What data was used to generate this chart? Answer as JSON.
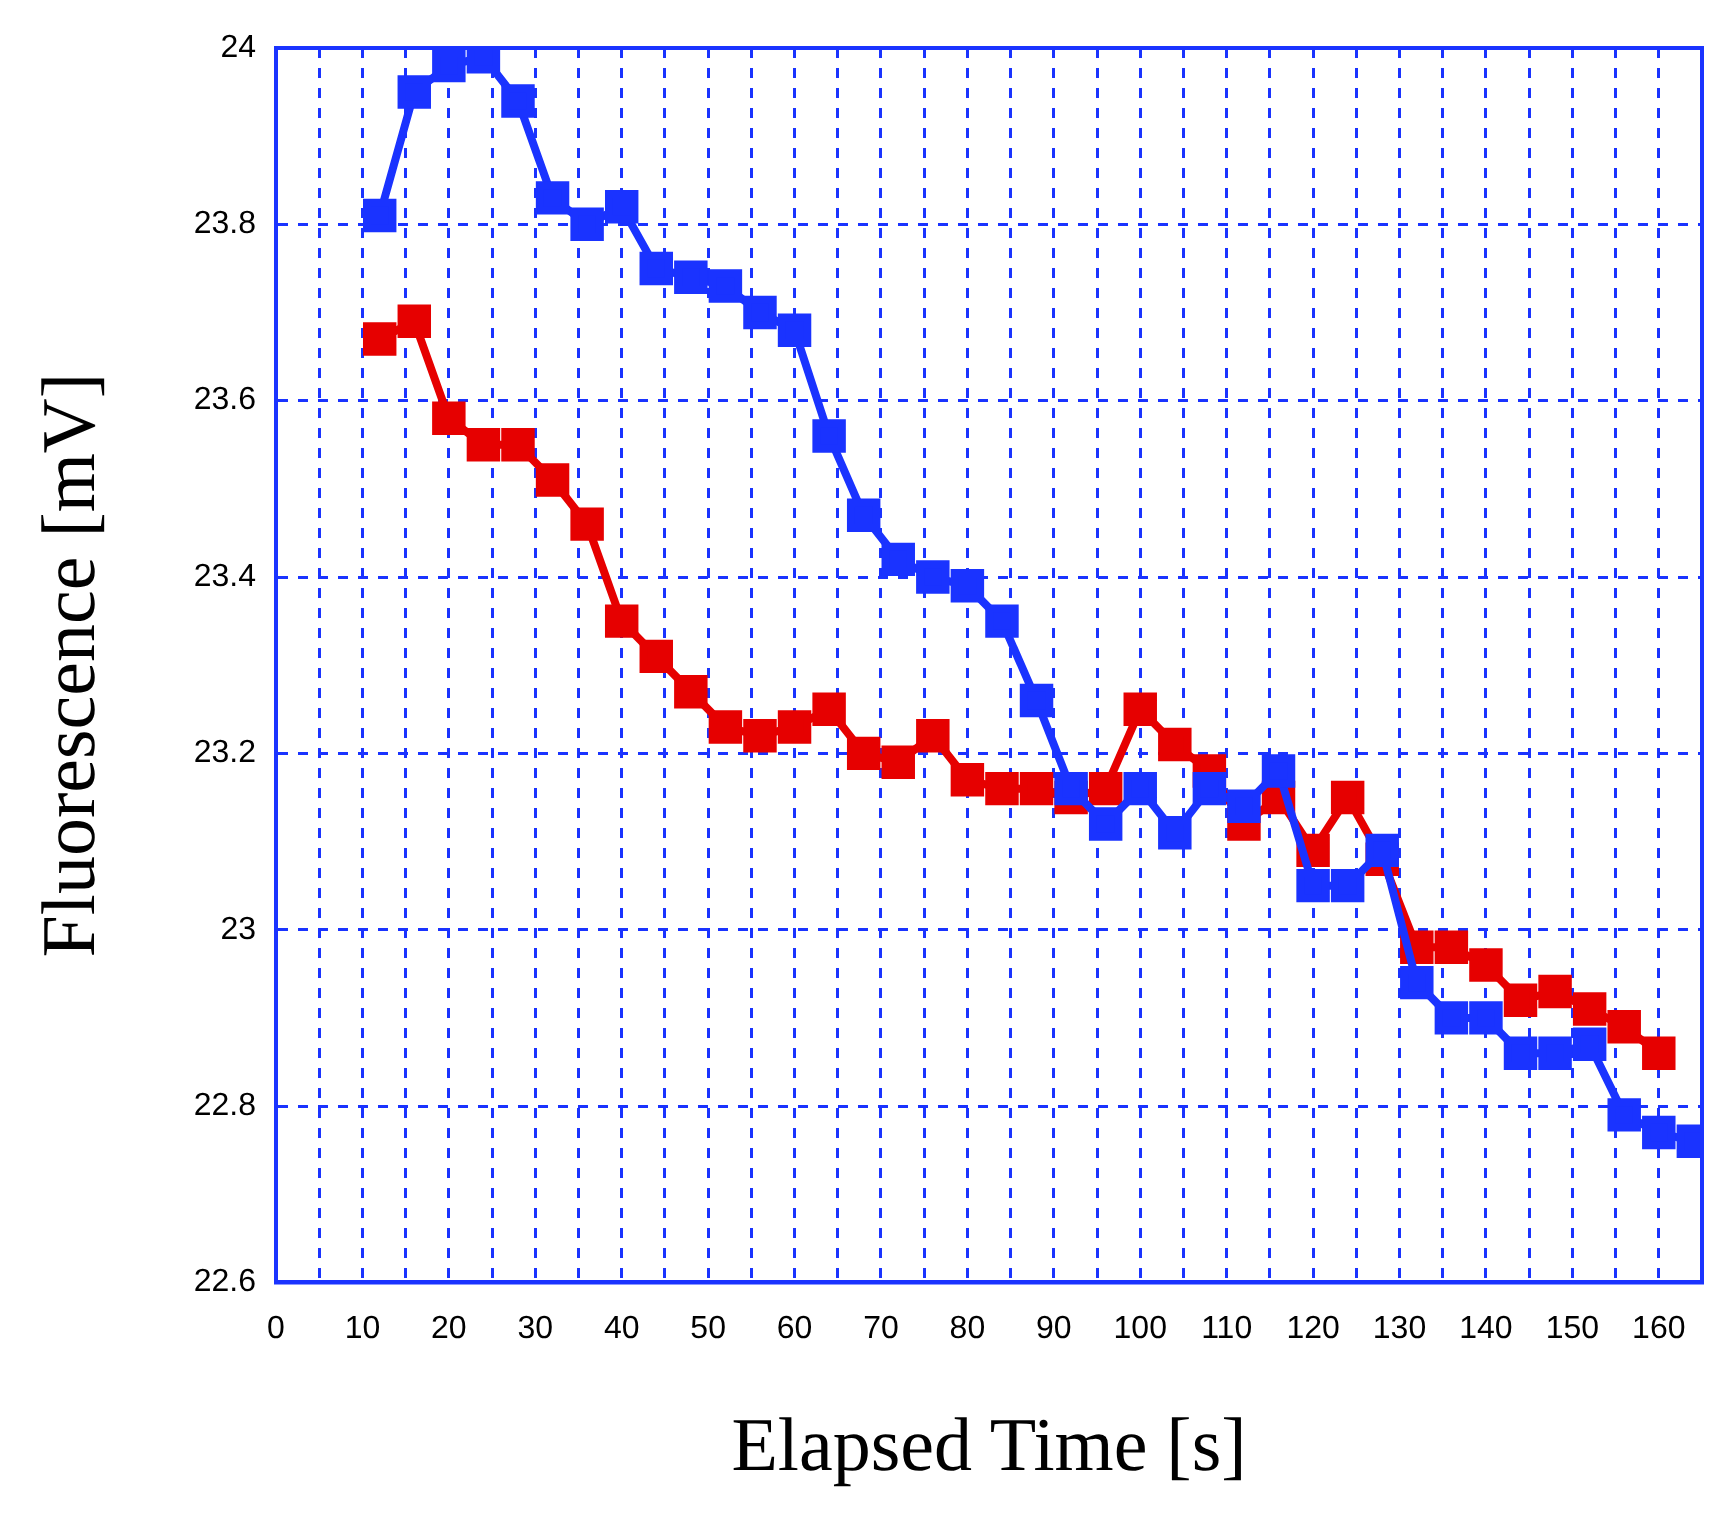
{
  "chart_data": {
    "type": "line",
    "xlabel": "Elapsed Time [s]",
    "ylabel": "Fluorescence [mV]",
    "x": [
      12,
      16,
      20,
      24,
      28,
      32,
      36,
      40,
      44,
      48,
      52,
      56,
      60,
      64,
      68,
      72,
      76,
      80,
      84,
      88,
      92,
      96,
      100,
      104,
      108,
      112,
      116,
      120,
      124,
      128,
      132,
      136,
      140,
      144,
      148,
      152,
      156,
      160,
      164
    ],
    "series": [
      {
        "color": "#1a33ff",
        "values": [
          23.81,
          23.95,
          23.98,
          23.99,
          23.94,
          23.83,
          23.8,
          23.82,
          23.75,
          23.74,
          23.73,
          23.7,
          23.68,
          23.56,
          23.47,
          23.42,
          23.4,
          23.39,
          23.35,
          23.26,
          23.16,
          23.12,
          23.16,
          23.11,
          23.16,
          23.14,
          23.18,
          23.05,
          23.05,
          23.09,
          22.94,
          22.9,
          22.9,
          22.86,
          22.86,
          22.87,
          22.79,
          22.77,
          22.76
        ]
      },
      {
        "color": "#e60000",
        "values": [
          23.67,
          23.69,
          23.58,
          23.55,
          23.55,
          23.51,
          23.46,
          23.35,
          23.31,
          23.27,
          23.23,
          23.22,
          23.23,
          23.25,
          23.2,
          23.19,
          23.22,
          23.17,
          23.16,
          23.16,
          23.15,
          23.16,
          23.25,
          23.21,
          23.18,
          23.12,
          23.15,
          23.09,
          23.15,
          23.08,
          22.98,
          22.98,
          22.96,
          22.92,
          22.93,
          22.91,
          22.89,
          22.86,
          null
        ]
      }
    ],
    "xlim": [
      0,
      165
    ],
    "xticks": [
      0,
      {
        "value": 5,
        "label": null
      },
      10,
      {
        "value": 15,
        "label": null
      },
      20,
      {
        "value": 25,
        "label": null
      },
      30,
      {
        "value": 35,
        "label": null
      },
      40,
      {
        "value": 45,
        "label": null
      },
      50,
      {
        "value": 55,
        "label": null
      },
      60,
      {
        "value": 65,
        "label": null
      },
      70,
      {
        "value": 75,
        "label": null
      },
      80,
      {
        "value": 85,
        "label": null
      },
      90,
      {
        "value": 95,
        "label": null
      },
      100,
      {
        "value": 105,
        "label": null
      },
      110,
      {
        "value": 115,
        "label": null
      },
      120,
      {
        "value": 125,
        "label": null
      },
      130,
      {
        "value": 135,
        "label": null
      },
      140,
      {
        "value": 145,
        "label": null
      },
      150,
      {
        "value": 155,
        "label": null
      },
      160
    ],
    "ylim": [
      22.6,
      24
    ],
    "yticks": [
      22.6,
      22.8,
      23,
      23.2,
      23.4,
      23.6,
      23.8,
      24
    ],
    "grid": true,
    "legend": false,
    "marker": "square",
    "line_style": "solid"
  }
}
